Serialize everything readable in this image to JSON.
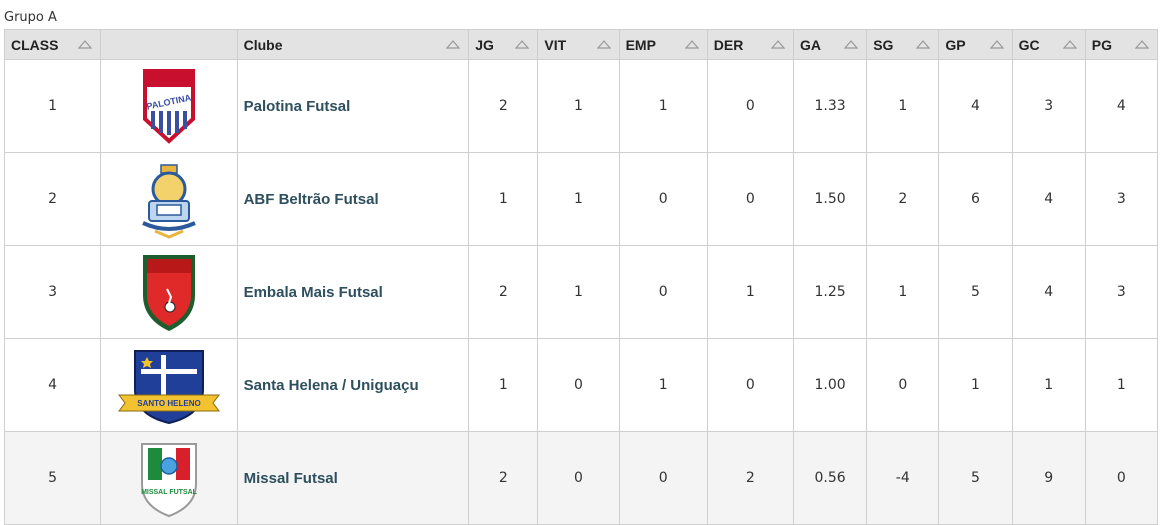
{
  "group_title": "Grupo A",
  "columns": [
    "CLASS",
    "",
    "Clube",
    "JG",
    "VIT",
    "EMP",
    "DER",
    "GA",
    "SG",
    "GP",
    "GC",
    "PG"
  ],
  "rows": [
    {
      "class": "1",
      "crest_icon": "palotina-crest-icon",
      "crest_text": "PALOTINA",
      "club": "Palotina Futsal",
      "jg": "2",
      "vit": "1",
      "emp": "1",
      "der": "0",
      "ga": "1.33",
      "sg": "1",
      "gp": "4",
      "gc": "3",
      "pg": "4"
    },
    {
      "class": "2",
      "crest_icon": "abf-beltrao-crest-icon",
      "crest_text": "",
      "club": "ABF Beltrão Futsal",
      "jg": "1",
      "vit": "1",
      "emp": "0",
      "der": "0",
      "ga": "1.50",
      "sg": "2",
      "gp": "6",
      "gc": "4",
      "pg": "3"
    },
    {
      "class": "3",
      "crest_icon": "embala-mais-crest-icon",
      "crest_text": "",
      "club": "Embala Mais Futsal",
      "jg": "2",
      "vit": "1",
      "emp": "0",
      "der": "1",
      "ga": "1.25",
      "sg": "1",
      "gp": "5",
      "gc": "4",
      "pg": "3"
    },
    {
      "class": "4",
      "crest_icon": "santa-helena-crest-icon",
      "crest_text": "SANTO HELENO",
      "club": "Santa Helena / Uniguaçu",
      "jg": "1",
      "vit": "0",
      "emp": "1",
      "der": "0",
      "ga": "1.00",
      "sg": "0",
      "gp": "1",
      "gc": "1",
      "pg": "1"
    },
    {
      "class": "5",
      "crest_icon": "missal-crest-icon",
      "crest_text": "MISSAL FUTSAL",
      "club": "Missal Futsal",
      "jg": "2",
      "vit": "0",
      "emp": "0",
      "der": "2",
      "ga": "0.56",
      "sg": "-4",
      "gp": "5",
      "gc": "9",
      "pg": "0"
    }
  ],
  "colors": {
    "header_bg": "#e3e3e3",
    "border": "#cfcfcf",
    "club_name": "#2e4f5e",
    "last_row_bg": "#f4f4f4"
  }
}
